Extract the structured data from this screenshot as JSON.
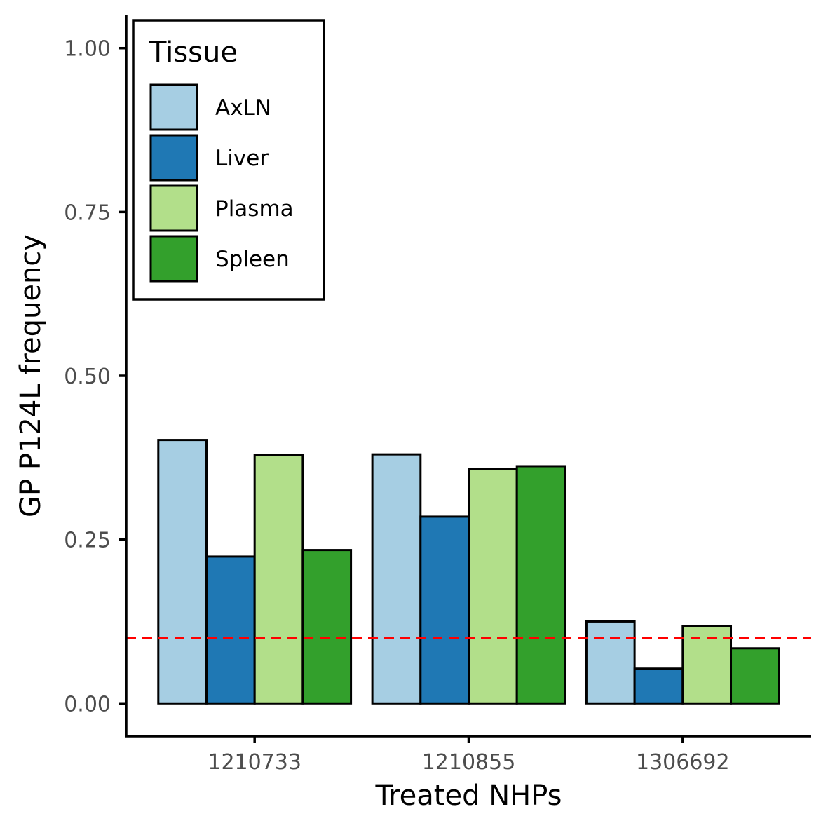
{
  "chart_data": {
    "type": "bar",
    "title": "",
    "xlabel": "Treated NHPs",
    "ylabel": "GP P124L frequency",
    "categories": [
      "1210733",
      "1210855",
      "1306692"
    ],
    "series": [
      {
        "name": "AxLN",
        "color": "#a6cee3",
        "values": [
          0.402,
          0.38,
          0.125
        ]
      },
      {
        "name": "Liver",
        "color": "#1f78b4",
        "values": [
          0.224,
          0.285,
          0.053
        ]
      },
      {
        "name": "Plasma",
        "color": "#b2df8a",
        "values": [
          0.379,
          0.358,
          0.118
        ]
      },
      {
        "name": "Spleen",
        "color": "#33a02c",
        "values": [
          0.234,
          0.362,
          0.084
        ]
      }
    ],
    "yticks": [
      "0.00",
      "0.25",
      "0.50",
      "0.75",
      "1.00"
    ],
    "ylim": [
      -0.05,
      1.05
    ],
    "threshold": {
      "value": 0.1,
      "color": "#ff0000",
      "style": "dashed"
    },
    "legend": {
      "title": "Tissue",
      "placement": "top-left"
    },
    "grid": false
  }
}
